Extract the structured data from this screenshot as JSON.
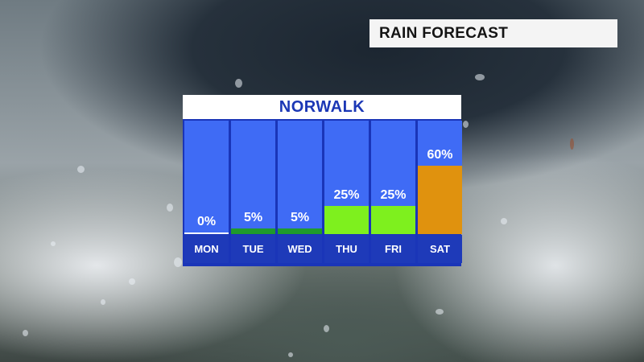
{
  "header": {
    "title": "RAIN FORECAST"
  },
  "chart_data": {
    "type": "bar",
    "title": "NORWALK",
    "unit": "%",
    "categories": [
      "MON",
      "TUE",
      "WED",
      "THU",
      "FRI",
      "SAT"
    ],
    "values": [
      0,
      5,
      5,
      25,
      25,
      60
    ],
    "labels": [
      "0%",
      "5%",
      "5%",
      "25%",
      "25%",
      "60%"
    ],
    "ylim": [
      0,
      100
    ],
    "bar_colors": [
      "#ffffff",
      "#1f9a2c",
      "#1f9a2c",
      "#7ef01e",
      "#7ef01e",
      "#e0920e"
    ]
  }
}
